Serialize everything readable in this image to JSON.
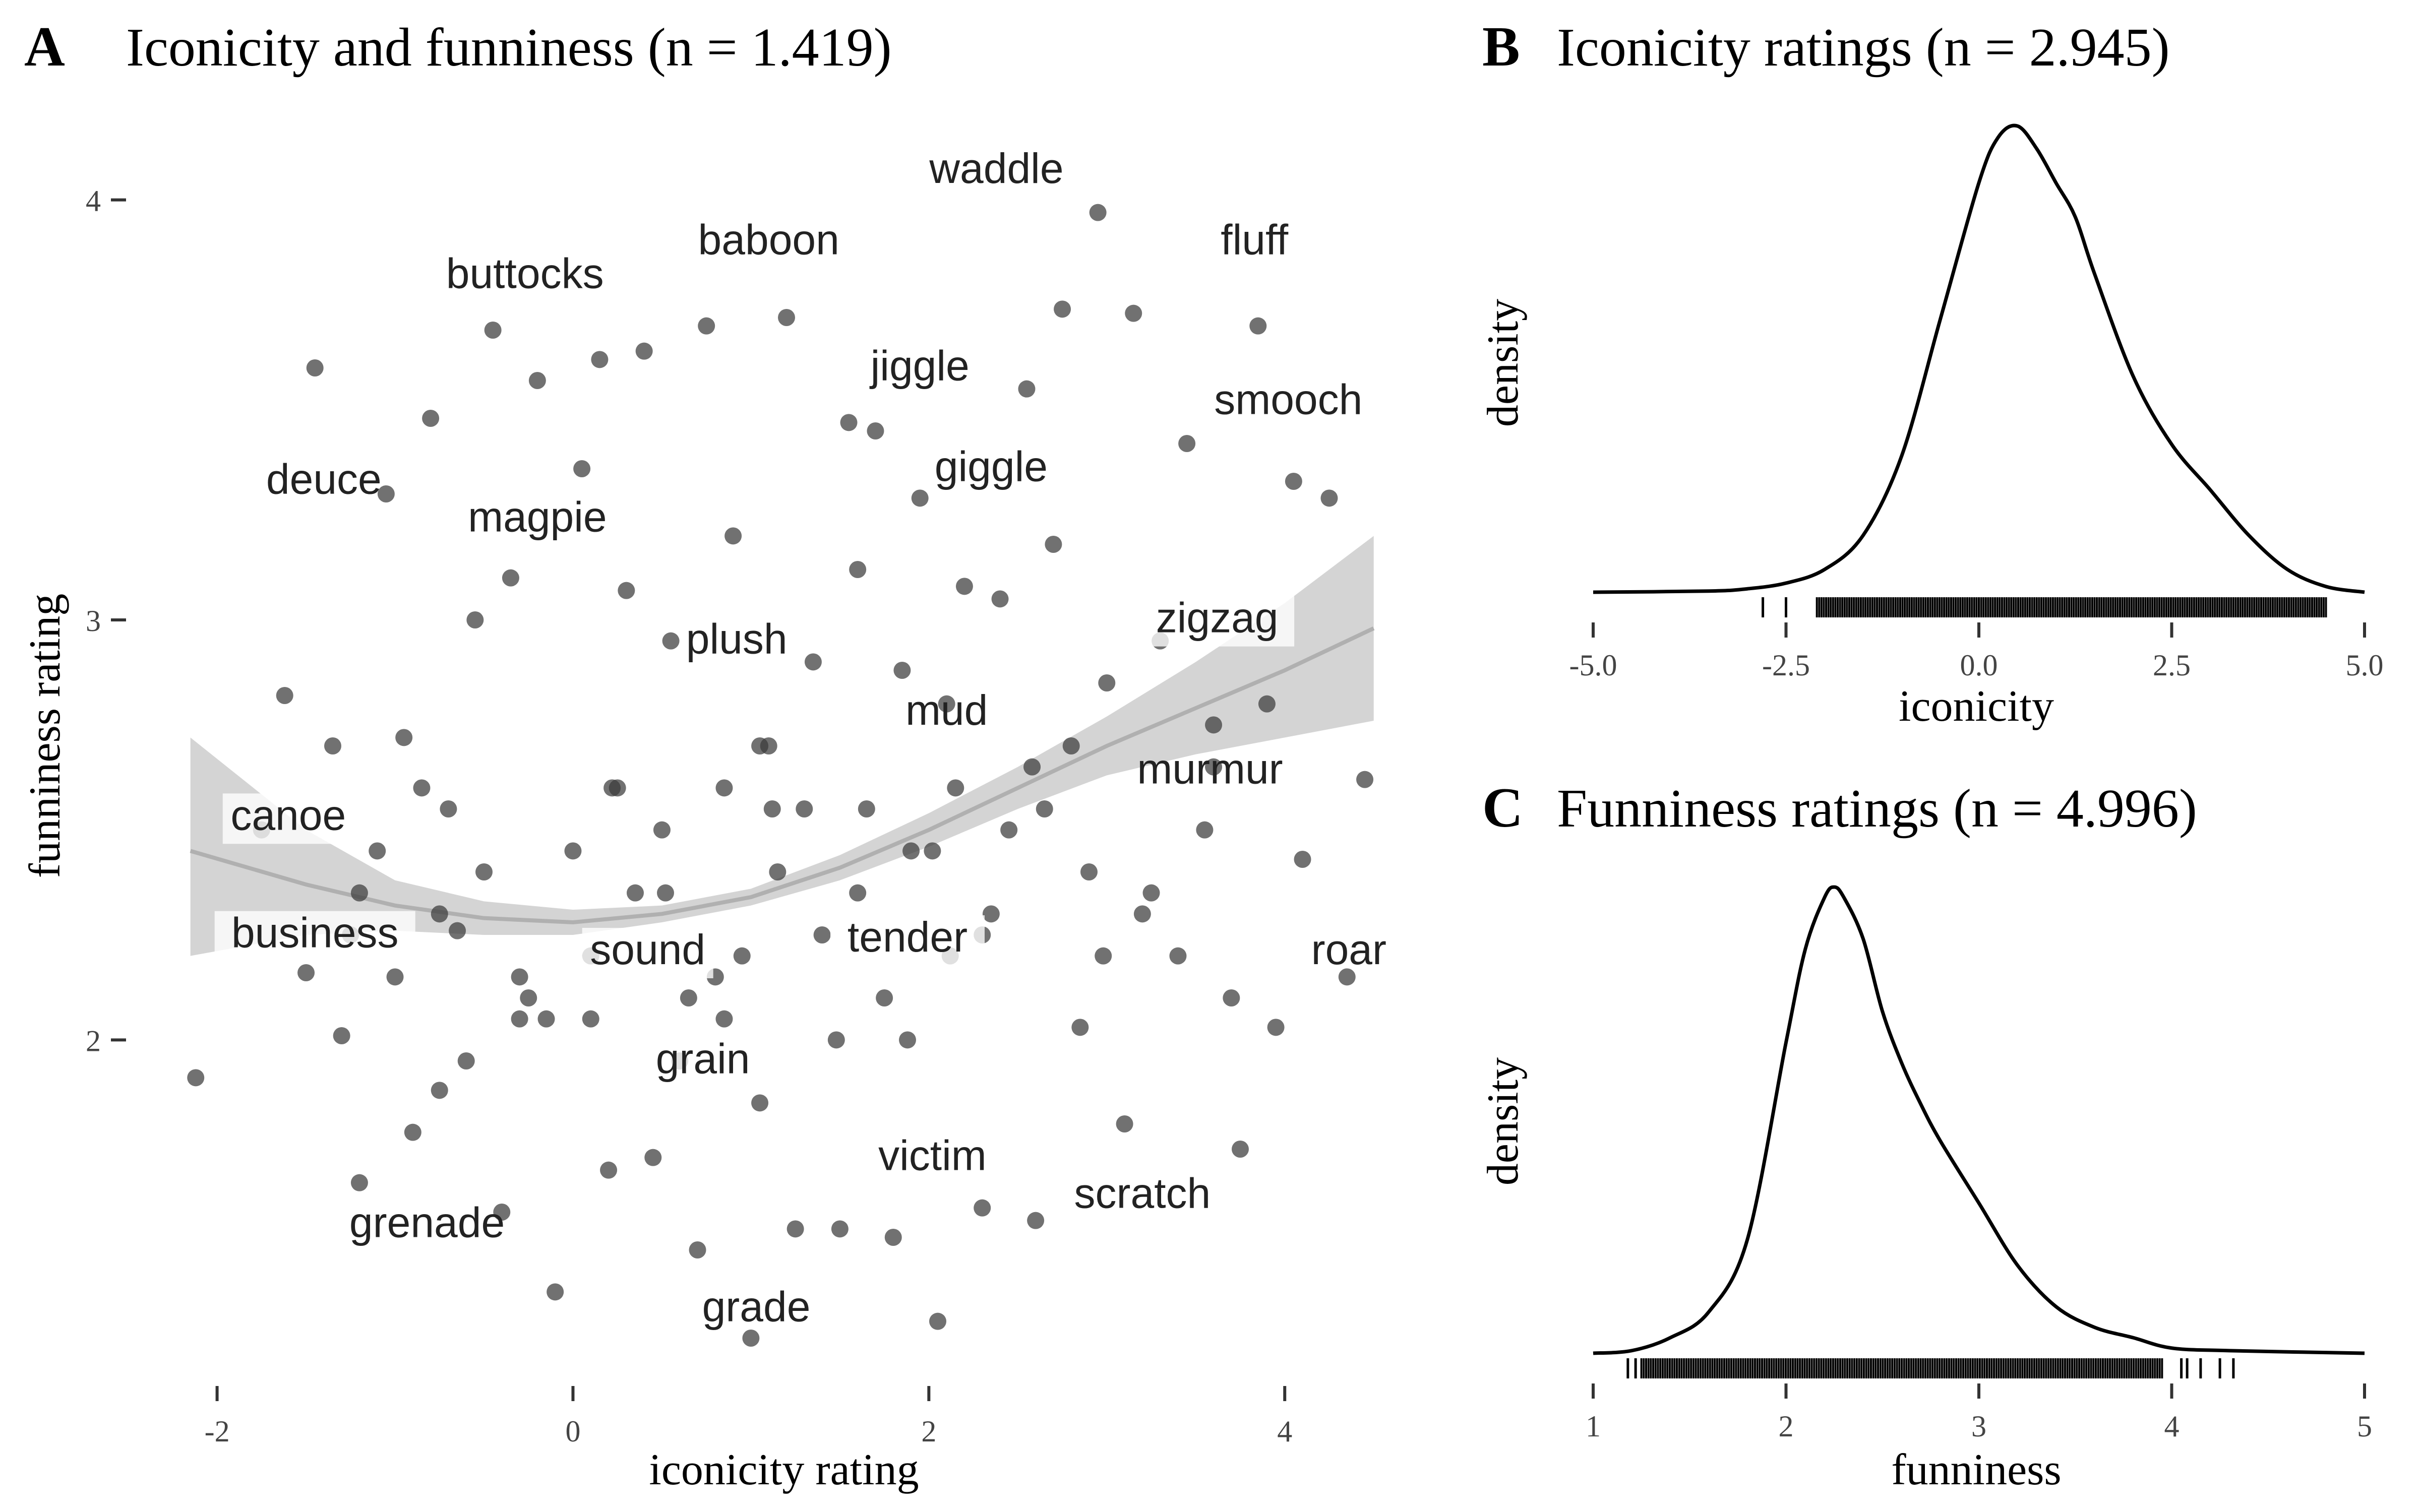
{
  "panels": {
    "A": {
      "letter": "A",
      "title": "Iconicity and funniness (n = 1.419)"
    },
    "B": {
      "letter": "B",
      "title": "Iconicity ratings (n = 2.945)"
    },
    "C": {
      "letter": "C",
      "title": "Funniness ratings (n = 4.996)"
    }
  },
  "colors": {
    "points": "#3a3a3a",
    "ribbon": "#cccccc",
    "trend": "#b0b0b0",
    "line": "#000000"
  },
  "chart_data": [
    {
      "panel": "A",
      "type": "scatter",
      "title": "Iconicity and funniness (n = 1.419)",
      "xlabel": "iconicity rating",
      "ylabel": "funniness rating",
      "xlim": [
        -2.2,
        4.6
      ],
      "ylim": [
        1.2,
        4.2
      ],
      "xticks": [
        -2,
        0,
        2,
        4
      ],
      "yticks": [
        2,
        3,
        4
      ],
      "grid": false,
      "n_points": 1419,
      "trend": {
        "type": "loess",
        "x": [
          -2.15,
          -1.5,
          -1.0,
          -0.5,
          0.0,
          0.5,
          1.0,
          1.5,
          2.0,
          2.5,
          3.0,
          3.5,
          4.0,
          4.5
        ],
        "y": [
          2.45,
          2.37,
          2.32,
          2.29,
          2.28,
          2.3,
          2.34,
          2.41,
          2.5,
          2.6,
          2.7,
          2.79,
          2.88,
          2.98
        ],
        "lower": [
          2.2,
          2.25,
          2.26,
          2.25,
          2.25,
          2.28,
          2.32,
          2.38,
          2.46,
          2.55,
          2.63,
          2.68,
          2.72,
          2.76
        ],
        "upper": [
          2.72,
          2.5,
          2.38,
          2.33,
          2.31,
          2.32,
          2.36,
          2.44,
          2.54,
          2.65,
          2.77,
          2.9,
          3.04,
          3.2
        ]
      },
      "points_x": [
        -2.12,
        -1.45,
        -1.62,
        -1.35,
        -1.1,
        -0.95,
        -0.7,
        -0.45,
        -0.2,
        0.15,
        -0.55,
        -0.85,
        -0.25,
        0.4,
        0.75,
        0.9,
        1.2,
        1.55,
        1.7,
        1.95,
        2.2,
        2.55,
        2.75,
        2.95,
        3.15,
        3.45,
        3.85,
        4.05,
        4.25,
        4.45,
        4.1,
        3.75,
        3.4,
        3.1,
        2.85,
        2.6,
        2.3,
        2.05,
        1.8,
        1.5,
        1.25,
        1.0,
        0.7,
        0.45,
        0.2,
        -0.1,
        -0.4,
        -0.65,
        -0.9,
        -1.2,
        -1.5,
        -1.75,
        -1.3,
        -1.05,
        -0.8,
        -0.35,
        0.05,
        0.3,
        0.55,
        0.85,
        1.1,
        1.35,
        1.6,
        1.85,
        2.1,
        2.4,
        2.7,
        3.0,
        3.3,
        3.6,
        3.9,
        3.55,
        3.25,
        2.9,
        2.65,
        2.35,
        2.15,
        1.9,
        1.65,
        1.4,
        1.15,
        0.95,
        0.65,
        0.35,
        0.1,
        -0.15,
        -0.5,
        -0.75,
        -1.0,
        -1.25,
        -0.6,
        -0.3,
        0.0,
        0.25,
        0.5,
        0.8,
        1.05,
        1.3,
        1.6,
        1.88,
        2.12,
        2.45,
        2.8,
        3.2,
        3.7,
        4.35,
        3.95,
        3.6,
        2.98,
        1.05,
        0.6,
        0.1,
        -0.3,
        -0.75,
        -1.2,
        1.48,
        1.75,
        2.02,
        2.3,
        2.58,
        1.12,
        0.85,
        0.52,
        0.22
      ],
      "points_y": [
        1.91,
        3.6,
        2.82,
        2.7,
        2.45,
        2.72,
        2.55,
        3.69,
        3.57,
        3.62,
        3.0,
        2.6,
        2.1,
        3.64,
        3.7,
        3.2,
        3.72,
        3.47,
        3.45,
        3.29,
        3.08,
        3.55,
        3.74,
        3.97,
        3.73,
        3.42,
        3.7,
        3.33,
        3.29,
        2.62,
        2.43,
        1.74,
        2.2,
        1.8,
        2.03,
        1.57,
        1.6,
        1.33,
        1.53,
        1.55,
        1.55,
        1.29,
        1.5,
        1.72,
        1.69,
        1.4,
        1.59,
        2.26,
        1.78,
        1.66,
        2.16,
        2.5,
        2.01,
        3.3,
        3.48,
        3.1,
        3.36,
        3.07,
        2.95,
        2.6,
        2.7,
        2.9,
        3.12,
        2.88,
        2.8,
        3.05,
        3.18,
        2.85,
        2.95,
        2.75,
        2.8,
        2.5,
        2.35,
        2.4,
        2.55,
        2.3,
        2.6,
        2.45,
        2.55,
        2.25,
        2.4,
        2.2,
        2.1,
        2.35,
        2.2,
        2.05,
        2.4,
        2.3,
        2.15,
        2.25,
        1.95,
        2.05,
        2.45,
        2.6,
        2.5,
        2.15,
        2.7,
        2.55,
        2.35,
        2.0,
        2.2,
        2.5,
        2.7,
        2.3,
        2.1,
        2.15,
        2.03,
        2.65,
        2.2,
        1.85,
        1.95,
        2.05,
        2.15,
        1.88,
        2.35,
        2.0,
        2.1,
        2.45,
        2.25,
        2.65,
        2.55,
        2.05,
        2.35,
        2.6
      ],
      "word_labels": [
        {
          "text": "waddle",
          "x": 2.38,
          "y": 4.05,
          "box": false
        },
        {
          "text": "baboon",
          "x": 1.1,
          "y": 3.88,
          "box": false
        },
        {
          "text": "buttocks",
          "x": -0.27,
          "y": 3.8,
          "box": false
        },
        {
          "text": "fluff",
          "x": 3.83,
          "y": 3.88,
          "box": false
        },
        {
          "text": "jiggle",
          "x": 1.95,
          "y": 3.58,
          "box": false
        },
        {
          "text": "smooch",
          "x": 4.02,
          "y": 3.5,
          "box": false
        },
        {
          "text": "deuce",
          "x": -1.4,
          "y": 3.31,
          "box": false
        },
        {
          "text": "giggle",
          "x": 2.35,
          "y": 3.34,
          "box": false
        },
        {
          "text": "magpie",
          "x": -0.2,
          "y": 3.22,
          "box": false
        },
        {
          "text": "zigzag",
          "x": 3.62,
          "y": 2.98,
          "box": true
        },
        {
          "text": "plush",
          "x": 0.92,
          "y": 2.93,
          "box": false
        },
        {
          "text": "mud",
          "x": 2.1,
          "y": 2.76,
          "box": false
        },
        {
          "text": "murmur",
          "x": 3.58,
          "y": 2.62,
          "box": false
        },
        {
          "text": "canoe",
          "x": -1.6,
          "y": 2.51,
          "box": true
        },
        {
          "text": "business",
          "x": -1.45,
          "y": 2.23,
          "box": true
        },
        {
          "text": "sound",
          "x": 0.42,
          "y": 2.19,
          "box": true
        },
        {
          "text": "tender",
          "x": 1.88,
          "y": 2.22,
          "box": true
        },
        {
          "text": "roar",
          "x": 4.36,
          "y": 2.19,
          "box": false
        },
        {
          "text": "grain",
          "x": 0.73,
          "y": 1.93,
          "box": true
        },
        {
          "text": "victim",
          "x": 2.02,
          "y": 1.7,
          "box": false
        },
        {
          "text": "scratch",
          "x": 3.2,
          "y": 1.61,
          "box": false
        },
        {
          "text": "grenade",
          "x": -0.82,
          "y": 1.54,
          "box": false
        },
        {
          "text": "grade",
          "x": 1.03,
          "y": 1.34,
          "box": false
        }
      ]
    },
    {
      "panel": "B",
      "type": "area",
      "title": "Iconicity ratings (n = 2.945)",
      "xlabel": "iconicity",
      "ylabel": "density",
      "xlim": [
        -5.0,
        5.0
      ],
      "xticks": [
        "-5.0",
        "-2.5",
        "0.0",
        "2.5",
        "5.0"
      ],
      "xtick_values": [
        -5.0,
        -2.5,
        0.0,
        2.5,
        5.0
      ],
      "grid": false,
      "density_x": [
        -5.0,
        -3.5,
        -3.0,
        -2.5,
        -2.0,
        -1.5,
        -1.0,
        -0.5,
        0.0,
        0.25,
        0.5,
        0.75,
        1.0,
        1.25,
        1.5,
        2.0,
        2.5,
        3.0,
        3.5,
        4.0,
        4.5,
        5.0
      ],
      "density_y": [
        0.0,
        0.001,
        0.003,
        0.008,
        0.02,
        0.05,
        0.12,
        0.24,
        0.36,
        0.4,
        0.41,
        0.39,
        0.36,
        0.33,
        0.28,
        0.19,
        0.13,
        0.09,
        0.05,
        0.02,
        0.005,
        0.0
      ],
      "rug": {
        "min": -2.1,
        "max": 4.5,
        "outliers": [
          -2.8,
          -2.5
        ]
      }
    },
    {
      "panel": "C",
      "type": "area",
      "title": "Funniness ratings (n = 4.996)",
      "xlabel": "funniness",
      "ylabel": "density",
      "xlim": [
        1,
        5
      ],
      "xticks": [
        "1",
        "2",
        "3",
        "4",
        "5"
      ],
      "xtick_values": [
        1,
        2,
        3,
        4,
        5
      ],
      "grid": false,
      "density_x": [
        1.0,
        1.2,
        1.4,
        1.6,
        1.8,
        2.0,
        2.1,
        2.2,
        2.25,
        2.3,
        2.4,
        2.5,
        2.6,
        2.7,
        2.8,
        3.0,
        3.2,
        3.4,
        3.6,
        3.8,
        4.0,
        4.3,
        5.0
      ],
      "density_y": [
        0.0,
        0.005,
        0.03,
        0.08,
        0.22,
        0.6,
        0.78,
        0.88,
        0.9,
        0.88,
        0.8,
        0.66,
        0.56,
        0.48,
        0.41,
        0.29,
        0.17,
        0.09,
        0.05,
        0.03,
        0.01,
        0.005,
        0.0
      ],
      "rug": {
        "min": 1.25,
        "max": 3.95,
        "outliers": [
          1.18,
          1.22,
          4.05,
          4.08,
          4.15,
          4.25,
          4.32
        ]
      }
    }
  ]
}
